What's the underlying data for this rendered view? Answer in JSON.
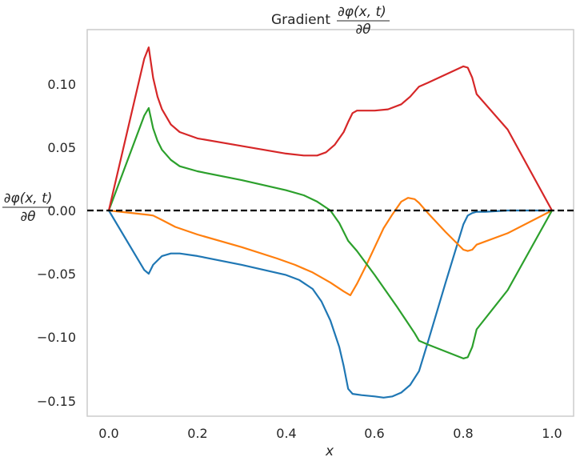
{
  "chart_data": {
    "type": "line",
    "title": "Gradient ∂φ(x, t) / ∂θ",
    "title_prefix": "Gradient",
    "title_numerator": "∂φ(x, t)",
    "title_denominator": "∂θ",
    "xlabel": "x",
    "ylabel": "∂φ(x, t) / ∂θ",
    "ylabel_numerator": "∂φ(x, t)",
    "ylabel_denominator": "∂θ",
    "xlim": [
      -0.05,
      1.05
    ],
    "ylim": [
      -0.162,
      0.143
    ],
    "xticks": [
      "0.0",
      "0.2",
      "0.4",
      "0.6",
      "0.8",
      "1.0"
    ],
    "yticks": [
      "0.10",
      "0.05",
      "0.00",
      "−0.05",
      "−0.10",
      "−0.15"
    ],
    "grid": false,
    "legend": null,
    "reference_line": {
      "y": 0.0,
      "style": "dashed",
      "color": "#000000"
    },
    "series": [
      {
        "name": "series-1",
        "color": "#1f77b4",
        "x": [
          0.0,
          0.08,
          0.09,
          0.1,
          0.12,
          0.14,
          0.16,
          0.2,
          0.3,
          0.4,
          0.43,
          0.46,
          0.48,
          0.5,
          0.52,
          0.53,
          0.54,
          0.55,
          0.57,
          0.6,
          0.62,
          0.64,
          0.66,
          0.68,
          0.7,
          0.72,
          0.76,
          0.8,
          0.81,
          0.82,
          0.83,
          0.85,
          0.9,
          1.0
        ],
        "y": [
          0.0,
          -0.047,
          -0.05,
          -0.043,
          -0.036,
          -0.034,
          -0.034,
          -0.036,
          -0.043,
          -0.051,
          -0.055,
          -0.062,
          -0.072,
          -0.087,
          -0.108,
          -0.123,
          -0.141,
          -0.145,
          -0.146,
          -0.147,
          -0.148,
          -0.147,
          -0.144,
          -0.138,
          -0.127,
          -0.104,
          -0.057,
          -0.011,
          -0.004,
          -0.002,
          -0.001,
          -0.001,
          0.0,
          0.0
        ]
      },
      {
        "name": "series-2",
        "color": "#ff7f0e",
        "x": [
          0.0,
          0.09,
          0.1,
          0.12,
          0.15,
          0.2,
          0.3,
          0.38,
          0.42,
          0.46,
          0.5,
          0.53,
          0.545,
          0.56,
          0.58,
          0.6,
          0.62,
          0.64,
          0.66,
          0.675,
          0.69,
          0.7,
          0.72,
          0.76,
          0.8,
          0.81,
          0.82,
          0.83,
          0.9,
          1.0
        ],
        "y": [
          0.0,
          -0.0035,
          -0.004,
          -0.0075,
          -0.013,
          -0.019,
          -0.029,
          -0.038,
          -0.043,
          -0.049,
          -0.057,
          -0.064,
          -0.067,
          -0.058,
          -0.044,
          -0.029,
          -0.014,
          -0.003,
          0.007,
          0.01,
          0.009,
          0.006,
          -0.002,
          -0.017,
          -0.031,
          -0.032,
          -0.031,
          -0.027,
          -0.018,
          0.0
        ]
      },
      {
        "name": "series-3",
        "color": "#2ca02c",
        "x": [
          0.0,
          0.08,
          0.09,
          0.1,
          0.11,
          0.12,
          0.14,
          0.16,
          0.2,
          0.3,
          0.4,
          0.44,
          0.47,
          0.5,
          0.52,
          0.54,
          0.56,
          0.6,
          0.65,
          0.69,
          0.7,
          0.72,
          0.8,
          0.81,
          0.82,
          0.83,
          0.9,
          1.0
        ],
        "y": [
          0.0,
          0.075,
          0.081,
          0.065,
          0.055,
          0.048,
          0.04,
          0.035,
          0.031,
          0.024,
          0.016,
          0.012,
          0.007,
          0.0,
          -0.01,
          -0.024,
          -0.032,
          -0.051,
          -0.076,
          -0.097,
          -0.103,
          -0.106,
          -0.117,
          -0.116,
          -0.108,
          -0.094,
          -0.063,
          0.0
        ]
      },
      {
        "name": "series-4",
        "color": "#d62728",
        "x": [
          0.0,
          0.08,
          0.09,
          0.1,
          0.11,
          0.12,
          0.14,
          0.16,
          0.2,
          0.3,
          0.4,
          0.44,
          0.47,
          0.49,
          0.51,
          0.53,
          0.54,
          0.55,
          0.56,
          0.6,
          0.63,
          0.66,
          0.68,
          0.7,
          0.72,
          0.8,
          0.81,
          0.82,
          0.83,
          0.9,
          1.0
        ],
        "y": [
          0.0,
          0.12,
          0.129,
          0.105,
          0.09,
          0.08,
          0.068,
          0.062,
          0.057,
          0.051,
          0.045,
          0.0435,
          0.0435,
          0.046,
          0.052,
          0.062,
          0.07,
          0.077,
          0.079,
          0.079,
          0.08,
          0.084,
          0.09,
          0.098,
          0.101,
          0.114,
          0.113,
          0.105,
          0.092,
          0.064,
          0.0
        ]
      }
    ]
  }
}
